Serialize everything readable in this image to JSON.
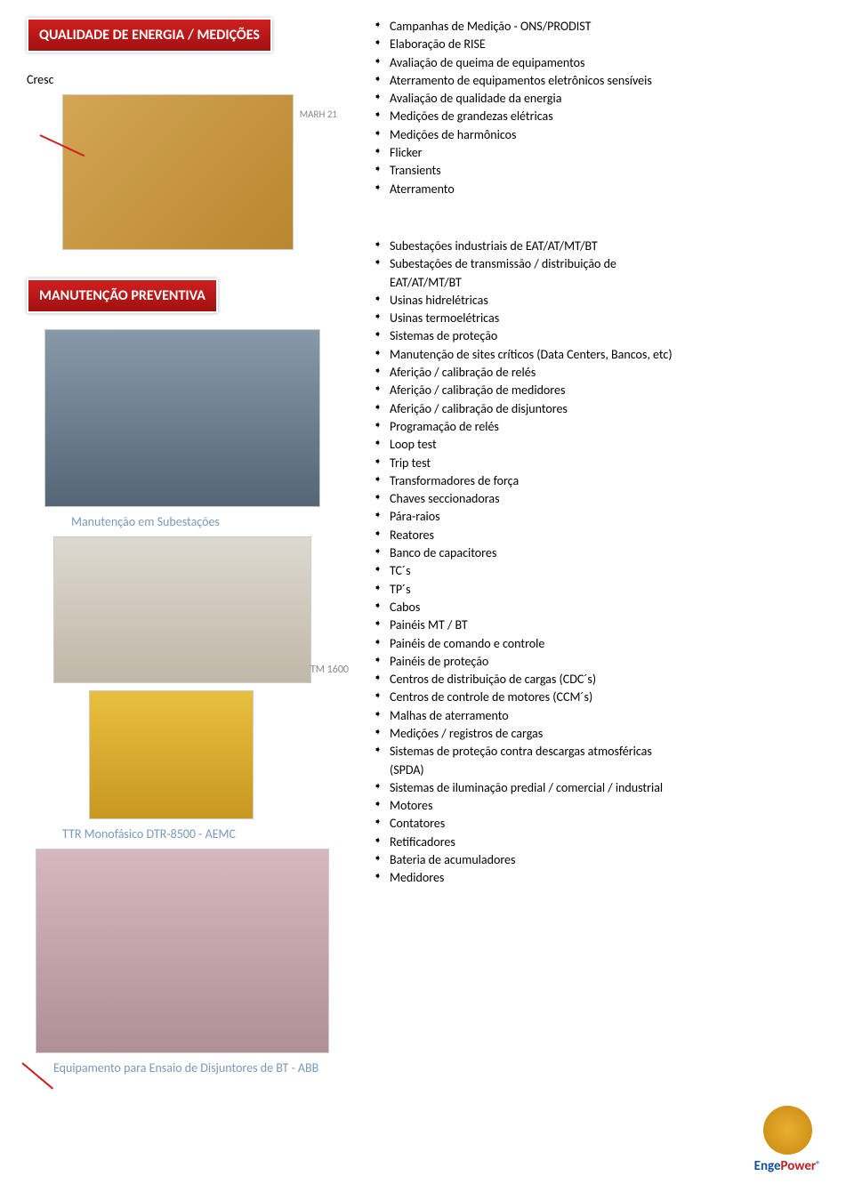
{
  "headers": {
    "qualidade": "QUALIDADE DE ENERGIA / MEDIÇÕES",
    "manutencao": "MANUTENÇÃO PREVENTIVA"
  },
  "left": {
    "cresc": "Cresc",
    "caption_sub": "Manutenção em Subestações",
    "caption_ttr": "TTR Monofásico DTR-8500 - AEMC",
    "caption_abb": "Equipamento para Ensaio de Disjuntores de BT - ABB",
    "label_tm1600": "TM 1600",
    "label_marh": "MARH 21"
  },
  "lists": {
    "medicoes": [
      "Campanhas de Medição - ONS/PRODIST",
      "Elaboração de RISE",
      "Avaliação de queima de equipamentos",
      "Aterramento de equipamentos eletrônicos sensíveis",
      "Avaliação de qualidade da energia",
      "Medições de grandezas elétricas",
      "Medições de harmônicos",
      "Flicker",
      "Transients",
      "Aterramento"
    ],
    "preventiva": [
      "Subestações industriais de EAT/AT/MT/BT",
      "Subestações de transmissão / distribuição de",
      "Usinas hidrelétricas",
      "Usinas termoelétricas",
      "Sistemas de proteção",
      "Manutenção de sites críticos (Data Centers, Bancos, etc)",
      "Aferição / calibração de relés",
      "Aferição / calibração de medidores",
      "Aferição / calibração de disjuntores",
      "Programação de relés",
      "Loop test",
      "Trip test",
      "Transformadores de força",
      "Chaves seccionadoras",
      "Pára-raios",
      "Reatores",
      "Banco de capacitores",
      "TC´s",
      "TP´s",
      "Cabos",
      "Painéis MT / BT",
      "Painéis de comando e controle",
      "Painéis de proteção",
      "Centros de distribuição de cargas (CDC´s)",
      "Centros de controle de motores (CCM´s)",
      "Malhas de aterramento",
      "Medições / registros de cargas",
      "Sistemas de proteção contra descargas atmosféricas",
      "Sistemas de iluminação predial / comercial / industrial",
      "Motores",
      "Contatores",
      "Retificadores",
      "Bateria de acumuladores",
      "Medidores"
    ],
    "preventiva_sub_after_1": "EAT/AT/MT/BT",
    "preventiva_sub_after_27": "(SPDA)"
  },
  "logo": {
    "text_e": "Enge",
    "text_p": "Power",
    "reg": "®"
  },
  "colors": {
    "header_bg_top": "#d02020",
    "header_bg_bottom": "#a01010",
    "caption": "#7a99b8",
    "line": "#cc2020"
  }
}
